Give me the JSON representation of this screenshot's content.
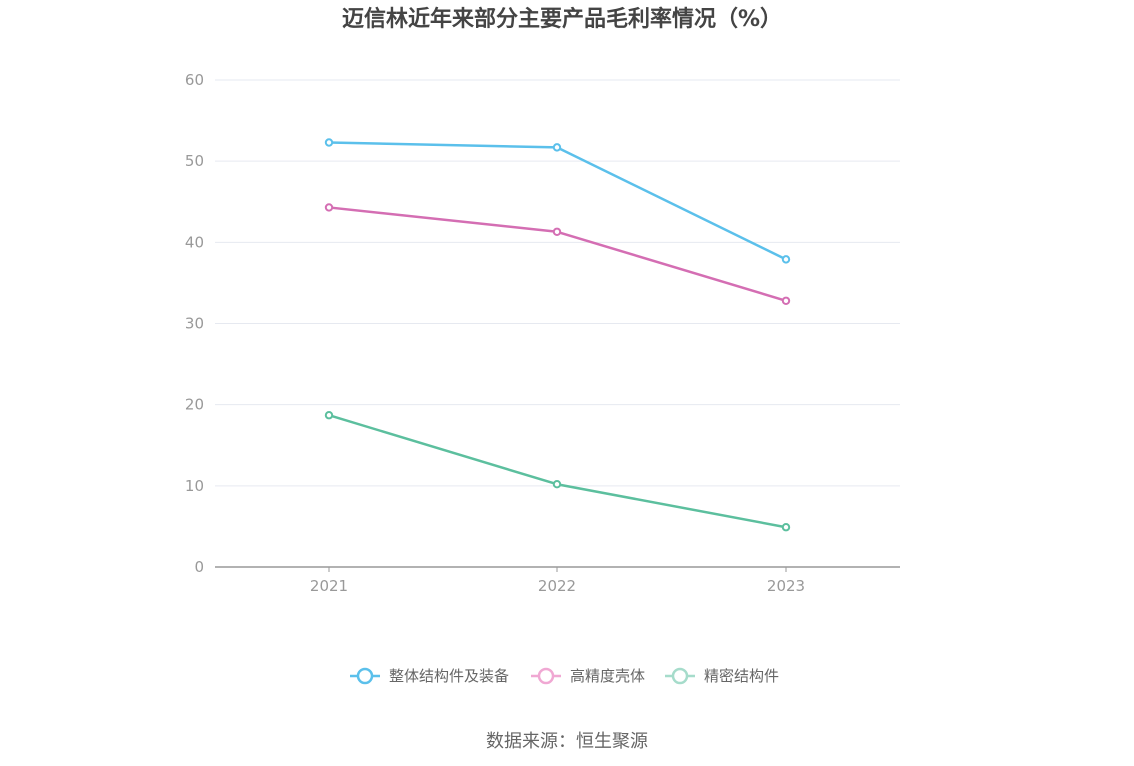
{
  "chart_data": {
    "type": "line",
    "title": "迈信林近年来部分主要产品毛利率情况（%）",
    "xlabel": "",
    "ylabel": "",
    "categories": [
      "2021",
      "2022",
      "2023"
    ],
    "ylim": [
      0,
      60
    ],
    "yticks": [
      0,
      10,
      20,
      30,
      40,
      50,
      60
    ],
    "grid": true,
    "legend_position": "bottom-center",
    "series": [
      {
        "name": "整体结构件及装备",
        "values": [
          52.3,
          51.7,
          37.9
        ],
        "color": "#5bc0eb"
      },
      {
        "name": "高精度壳体",
        "values": [
          44.3,
          41.3,
          32.8
        ],
        "color": "#d46eb3"
      },
      {
        "name": "精密结构件",
        "values": [
          18.7,
          10.2,
          4.9
        ],
        "color": "#5cbf9e"
      }
    ]
  },
  "source": "数据来源：恒生聚源"
}
